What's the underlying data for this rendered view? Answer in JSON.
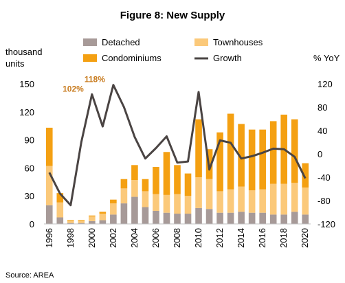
{
  "chart_data": {
    "type": "bar",
    "title": "Figure 8: New Supply",
    "left_axis_label_line1": "thousand",
    "left_axis_label_line2": "units",
    "right_axis_label": "% YoY",
    "source": "Source: AREA",
    "categories": [
      "1996",
      "1997",
      "1998",
      "1999",
      "2000",
      "2001",
      "2002",
      "2003",
      "2004",
      "2005",
      "2006",
      "2007",
      "2008",
      "2009",
      "2010",
      "2011",
      "2012",
      "2013",
      "2014",
      "2015",
      "2016",
      "2017",
      "2018",
      "2019",
      "2020"
    ],
    "x_tick_labels": [
      "1996",
      "1998",
      "2000",
      "2002",
      "2004",
      "2006",
      "2008",
      "2010",
      "2012",
      "2014",
      "2016",
      "2018",
      "2020"
    ],
    "ylim": [
      0,
      150
    ],
    "y_ticks": [
      0,
      30,
      60,
      90,
      120,
      150
    ],
    "y2lim": [
      -120,
      120
    ],
    "y2_ticks": [
      -120,
      -80,
      -40,
      0,
      40,
      80,
      120
    ],
    "stacked": true,
    "series": [
      {
        "name": "Detached",
        "color": "#a79a98",
        "axis": "left",
        "values": [
          20,
          7,
          1,
          1,
          3,
          4,
          10,
          22,
          29,
          18,
          14,
          12,
          11,
          11,
          17,
          16,
          12,
          12,
          13,
          12,
          12,
          10,
          10,
          13,
          10
        ]
      },
      {
        "name": "Townhouses",
        "color": "#fbc97a",
        "axis": "left",
        "values": [
          42,
          16,
          2,
          2,
          5,
          7,
          12,
          16,
          18,
          17,
          18,
          19,
          21,
          19,
          33,
          32,
          23,
          25,
          27,
          24,
          25,
          33,
          33,
          31,
          29
        ]
      },
      {
        "name": "Condominiums",
        "color": "#f4a012",
        "axis": "left",
        "values": [
          41,
          10,
          1,
          1,
          1,
          2,
          4,
          10,
          16,
          13,
          29,
          46,
          31,
          24,
          62,
          32,
          63,
          81,
          67,
          65,
          64,
          67,
          74,
          68,
          26
        ]
      },
      {
        "name": "Growth",
        "color": "#4a4443",
        "axis": "right",
        "type": "line",
        "values": [
          -32,
          -68,
          -88,
          20,
          102,
          47,
          118,
          80,
          29,
          -8,
          10,
          30,
          -15,
          -13,
          106,
          -27,
          23,
          19,
          -8,
          -4,
          2,
          9,
          8,
          -5,
          -42
        ]
      }
    ],
    "annotations": [
      {
        "text": "102%",
        "category": "2000",
        "color": "#c87b1e"
      },
      {
        "text": "118%",
        "category": "2002",
        "color": "#c87b1e"
      }
    ],
    "legend_position": "top",
    "grid": false
  }
}
